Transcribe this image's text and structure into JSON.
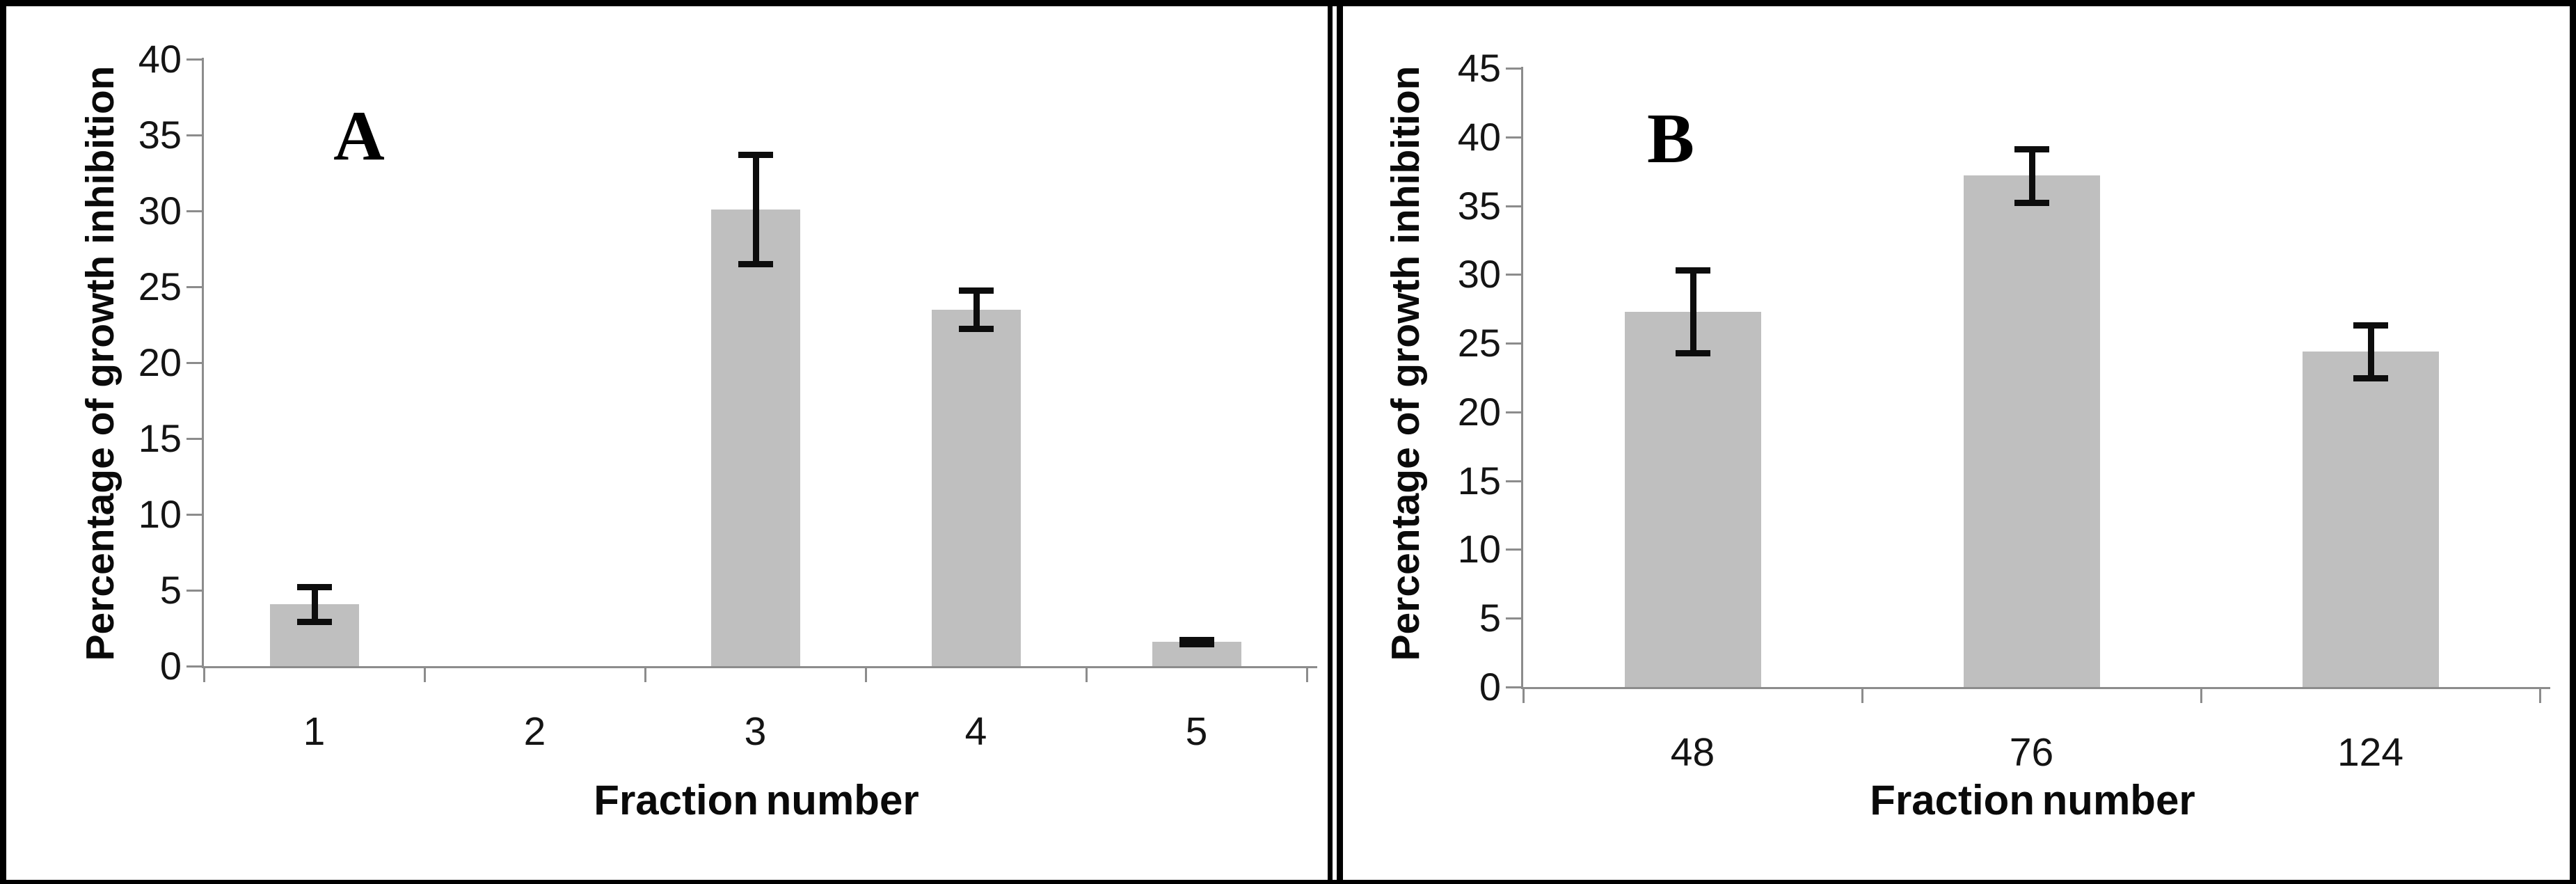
{
  "figure": {
    "description": "Two-panel bar figure of percentage growth inhibition by fraction number",
    "border_color": "#000000",
    "background_color": "#ffffff"
  },
  "chart_data": [
    {
      "type": "bar",
      "panel_letter": "A",
      "title": "",
      "xlabel": "Fraction number",
      "ylabel": "Percentage of growth inhibition",
      "categories": [
        "1",
        "2",
        "3",
        "4",
        "5"
      ],
      "values": [
        4.1,
        0,
        30.1,
        23.5,
        1.6
      ],
      "errors": [
        1.15,
        0,
        3.6,
        1.25,
        0.15
      ],
      "ylim": [
        0,
        40
      ],
      "yticks": [
        0,
        5,
        10,
        15,
        20,
        25,
        30,
        35,
        40
      ],
      "grid": false,
      "legend": "none",
      "bar_color": "#bfbfbf",
      "axis_color": "#8c8c8c",
      "error_bar_color": "#0d0d0d"
    },
    {
      "type": "bar",
      "panel_letter": "B",
      "title": "",
      "xlabel": "Fraction number",
      "ylabel": "Percentage of growth inhibition",
      "categories": [
        "48",
        "76",
        "124"
      ],
      "values": [
        27.3,
        37.2,
        24.4
      ],
      "errors": [
        3.0,
        1.95,
        1.9
      ],
      "ylim": [
        0,
        45
      ],
      "yticks": [
        0,
        5,
        10,
        15,
        20,
        25,
        30,
        35,
        40,
        45
      ],
      "grid": false,
      "legend": "none",
      "bar_color": "#bfbfbf",
      "axis_color": "#8c8c8c",
      "error_bar_color": "#0d0d0d"
    }
  ]
}
